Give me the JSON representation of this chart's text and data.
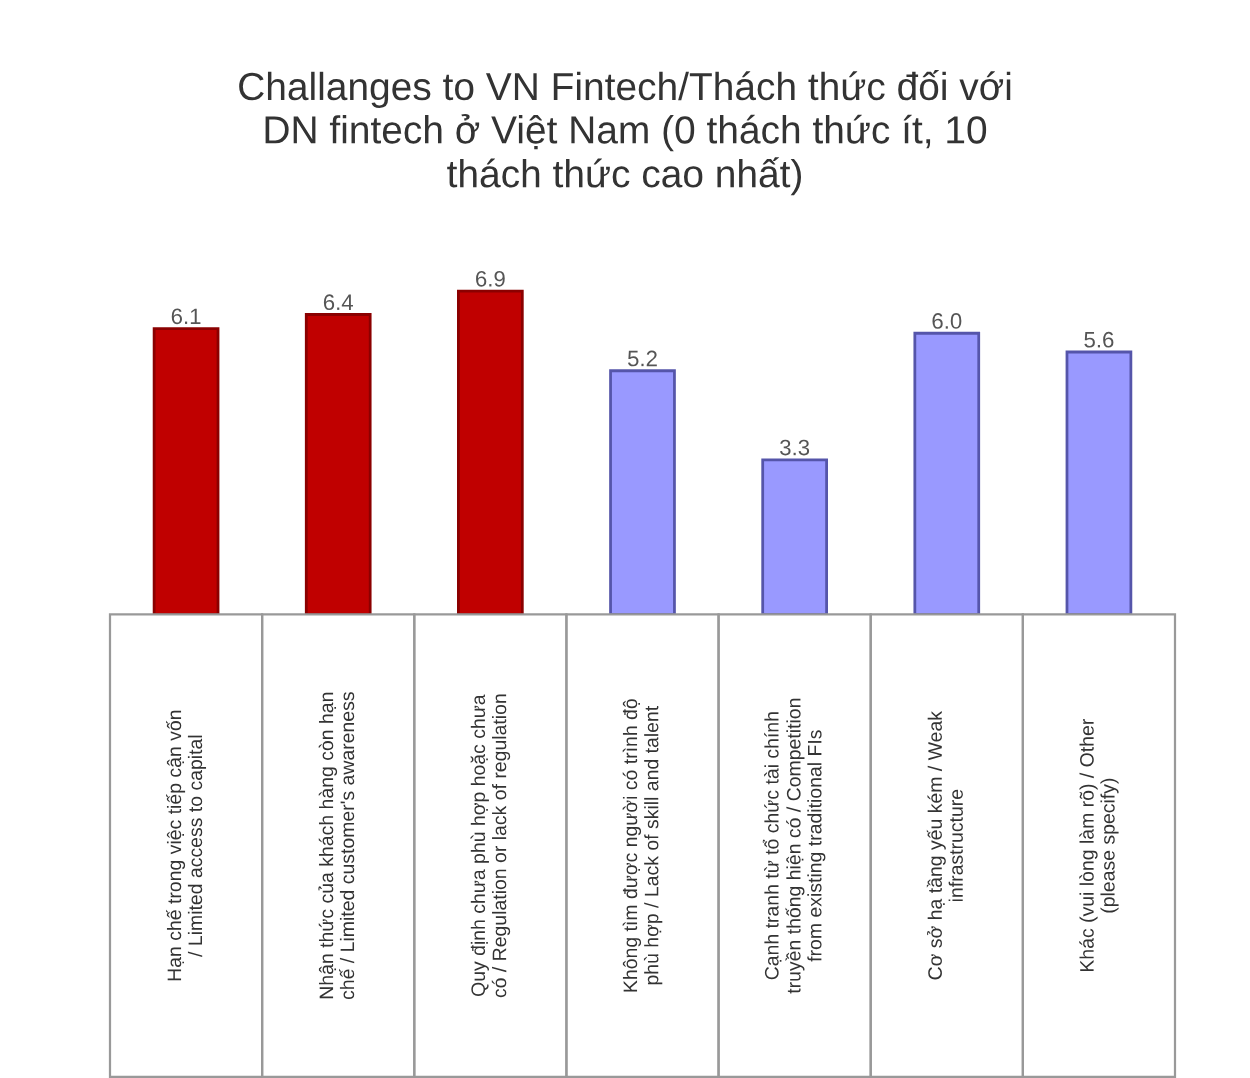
{
  "chart_data": {
    "type": "bar",
    "title": "Challanges to VN Fintech/Thách thức đối với\nDN fintech ở Việt Nam (0 thách thức ít, 10\nthách thức cao nhất)",
    "categories": [
      "Hạn chế trong việc tiếp cận vốn\n/ Limited access to capital",
      "Nhận thức của khách hàng còn hạn\nchế / Limited customer's awareness",
      "Quy định chưa phù hợp hoặc chưa\ncó / Regulation or lack of regulation",
      "Không tìm được người có trình độ\nphù hợp / Lack of skill and talent",
      "Cạnh tranh từ tổ chức tài chính\ntruyền thống hiện có / Competition\nfrom existing traditional FIs",
      "Cơ sở hạ tầng yếu kém / Weak\ninfrastructure",
      "Khác (vui lòng làm rõ) / Other\n(please specify)"
    ],
    "values": [
      6.1,
      6.4,
      6.9,
      5.2,
      3.3,
      6.0,
      5.6
    ],
    "colors": [
      "#c00000",
      "#c00000",
      "#c00000",
      "#9999ff",
      "#9999ff",
      "#9999ff",
      "#9999ff"
    ],
    "value_labels": [
      "6.1",
      "6.4",
      "6.9",
      "5.2",
      "3.3",
      "6.0",
      "5.6"
    ]
  }
}
